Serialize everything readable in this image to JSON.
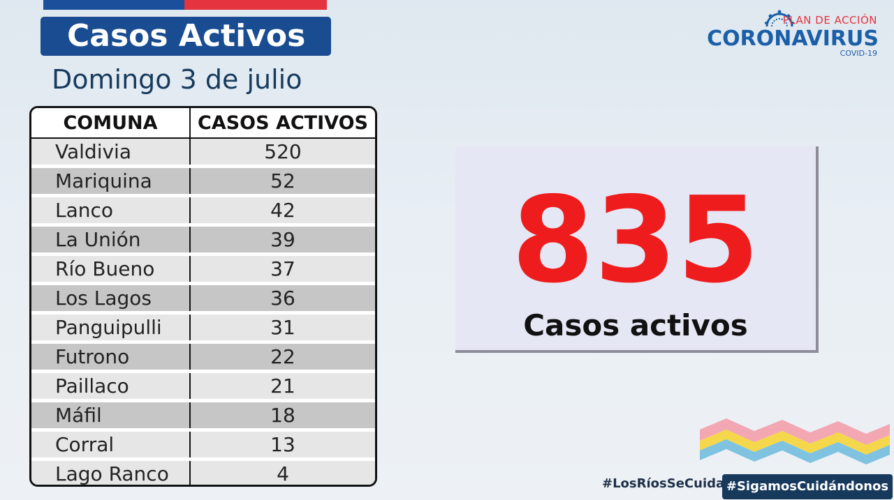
{
  "header": {
    "title": "Casos Activos",
    "subtitle": "Domingo 3 de julio"
  },
  "logo": {
    "plan": "PLAN DE ACCIÓN",
    "main": "CORONAVIRUS",
    "sub": "COVID-19"
  },
  "table": {
    "headers": [
      "COMUNA",
      "CASOS ACTIVOS"
    ],
    "rows": [
      {
        "comuna": "Valdivia",
        "casos": "520"
      },
      {
        "comuna": "Mariquina",
        "casos": "52"
      },
      {
        "comuna": "Lanco",
        "casos": "42"
      },
      {
        "comuna": "La Unión",
        "casos": "39"
      },
      {
        "comuna": "Río Bueno",
        "casos": "37"
      },
      {
        "comuna": "Los Lagos",
        "casos": "36"
      },
      {
        "comuna": "Panguipulli",
        "casos": "31"
      },
      {
        "comuna": "Futrono",
        "casos": "22"
      },
      {
        "comuna": "Paillaco",
        "casos": "21"
      },
      {
        "comuna": "Máfil",
        "casos": "18"
      },
      {
        "comuna": "Corral",
        "casos": "13"
      },
      {
        "comuna": "Lago Ranco",
        "casos": "4"
      }
    ]
  },
  "summary": {
    "total": "835",
    "label": "Casos activos"
  },
  "footer": {
    "hashtag1": "#LosRíosSeCuida",
    "hashtag2": "#SigamosCuidándonos"
  },
  "colors": {
    "title_bg": "#1a4c91",
    "total_red": "#ee1c1c"
  }
}
